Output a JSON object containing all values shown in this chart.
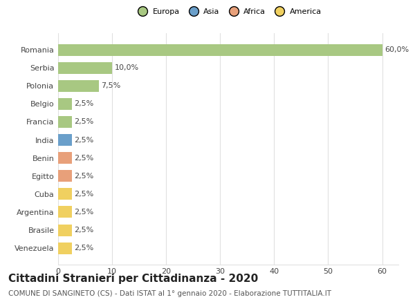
{
  "countries": [
    "Romania",
    "Serbia",
    "Polonia",
    "Belgio",
    "Francia",
    "India",
    "Benin",
    "Egitto",
    "Cuba",
    "Argentina",
    "Brasile",
    "Venezuela"
  ],
  "values": [
    60.0,
    10.0,
    7.5,
    2.5,
    2.5,
    2.5,
    2.5,
    2.5,
    2.5,
    2.5,
    2.5,
    2.5
  ],
  "bar_colors": [
    "#a8c882",
    "#a8c882",
    "#a8c882",
    "#a8c882",
    "#a8c882",
    "#6a9fca",
    "#e8a07a",
    "#e8a07a",
    "#f0d060",
    "#f0d060",
    "#f0d060",
    "#f0d060"
  ],
  "labels": [
    "60,0%",
    "10,0%",
    "7,5%",
    "2,5%",
    "2,5%",
    "2,5%",
    "2,5%",
    "2,5%",
    "2,5%",
    "2,5%",
    "2,5%",
    "2,5%"
  ],
  "xlim": [
    0,
    63
  ],
  "xticks": [
    0,
    10,
    20,
    30,
    40,
    50,
    60
  ],
  "title": "Cittadini Stranieri per Cittadinanza - 2020",
  "subtitle": "COMUNE DI SANGINETO (CS) - Dati ISTAT al 1° gennaio 2020 - Elaborazione TUTTITALIA.IT",
  "legend_labels": [
    "Europa",
    "Asia",
    "Africa",
    "America"
  ],
  "legend_colors": [
    "#a8c882",
    "#6a9fca",
    "#e8a07a",
    "#f0d060"
  ],
  "bg_color": "#ffffff",
  "grid_color": "#e0e0e0",
  "title_fontsize": 11,
  "subtitle_fontsize": 7.5,
  "label_fontsize": 8,
  "tick_fontsize": 8
}
